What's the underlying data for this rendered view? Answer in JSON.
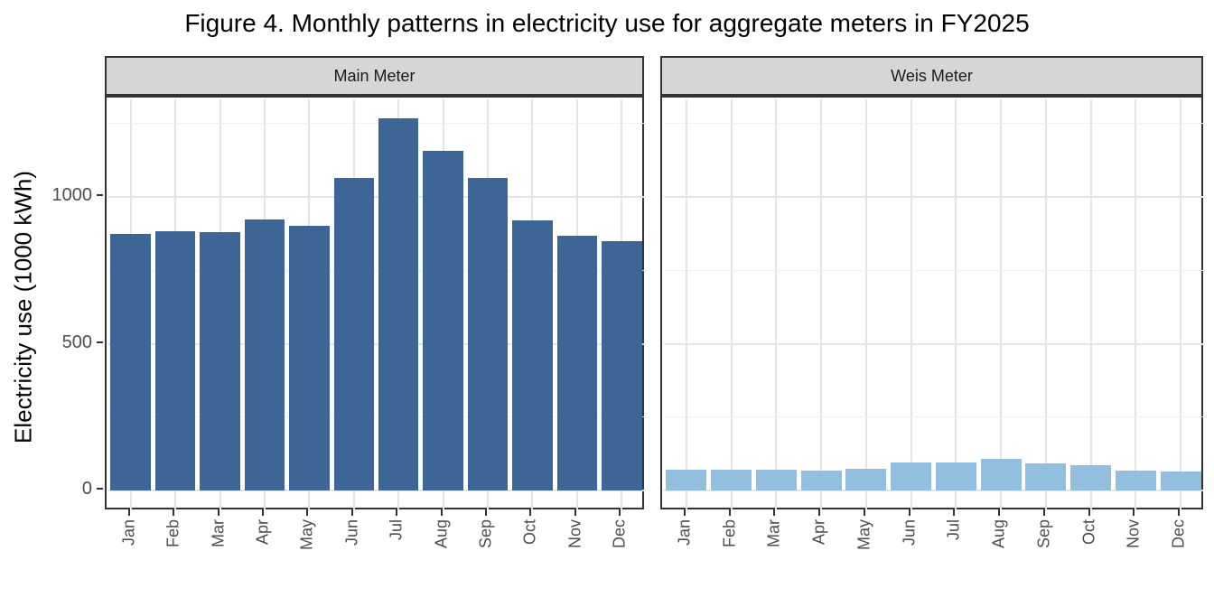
{
  "title": "Figure 4. Monthly patterns in electricity use for aggregate meters in FY2025",
  "chart_data": {
    "type": "bar",
    "title": "Figure 4. Monthly patterns in electricity use for aggregate meters in FY2025",
    "xlabel": "",
    "ylabel": "Electricity use (1000 kWh)",
    "categories": [
      "Jan",
      "Feb",
      "Mar",
      "Apr",
      "May",
      "Jun",
      "Jul",
      "Aug",
      "Sep",
      "Oct",
      "Nov",
      "Dec"
    ],
    "facets": [
      {
        "name": "Main Meter",
        "bar_color": "#3D6595",
        "values": [
          876,
          883,
          881,
          923,
          903,
          1066,
          1269,
          1159,
          1065,
          921,
          868,
          851
        ]
      },
      {
        "name": "Weis Meter",
        "bar_color": "#92BFE0",
        "values": [
          70,
          72,
          70,
          69,
          75,
          95,
          96,
          108,
          92,
          86,
          69,
          64
        ]
      }
    ],
    "y_ticks": [
      0,
      500,
      1000
    ],
    "y_minor_ticks": [
      250,
      750,
      1250
    ],
    "ylim": [
      -64,
      1333
    ],
    "grid": true,
    "legend": false,
    "facet_strip_position": "top"
  },
  "theme": {
    "strip_bg": "#D6D6D6",
    "panel_border": "#333333",
    "grid_major": "#E4E4E4",
    "grid_minor": "#F1F1F1",
    "axis_text_color": "#4D4D4D",
    "tick_color": "#333333",
    "background": "#FFFFFF"
  }
}
